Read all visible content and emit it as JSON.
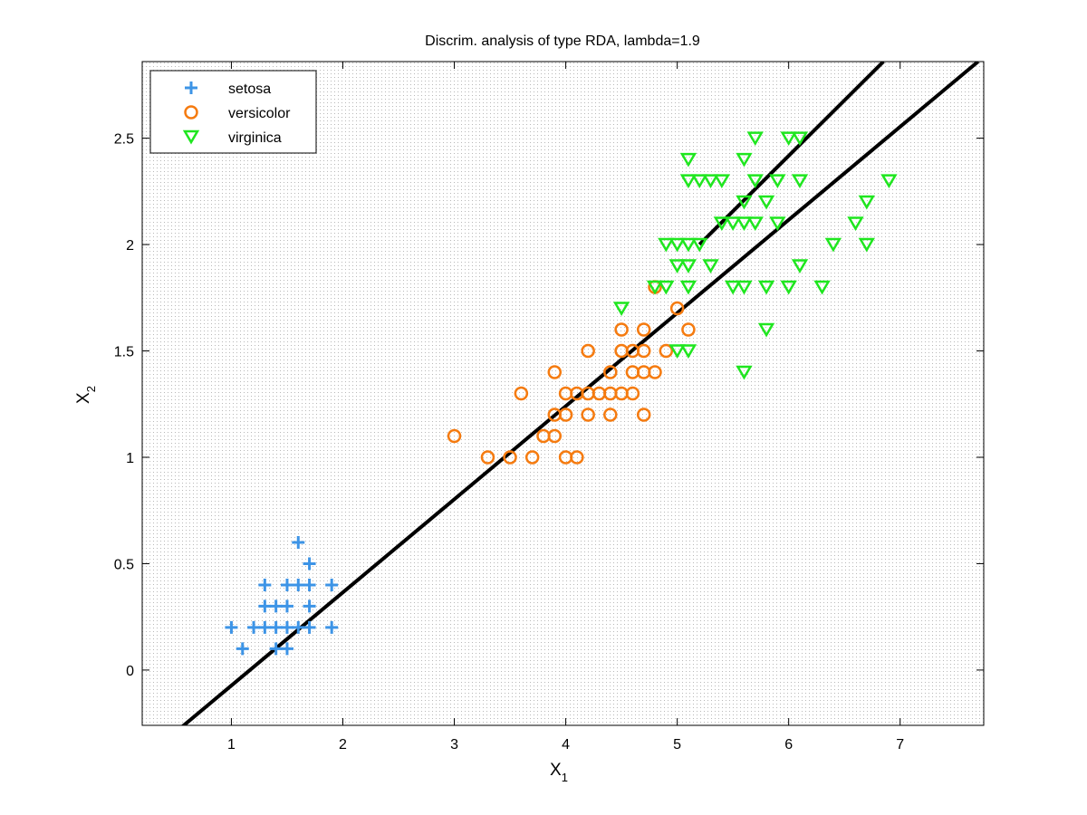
{
  "chart_data": {
    "type": "scatter",
    "title": "Discrim. analysis of type RDA, lambda=1.9",
    "xlabel": {
      "base": "X",
      "sub": "1"
    },
    "ylabel": {
      "base": "X",
      "sub": "2"
    },
    "xlim": [
      0.2,
      7.75
    ],
    "ylim": [
      -0.26,
      2.86
    ],
    "xticks": [
      1,
      2,
      3,
      4,
      5,
      6,
      7
    ],
    "yticks": [
      0,
      0.5,
      1,
      1.5,
      2,
      2.5
    ],
    "ytick_labels": [
      "0",
      "0.5",
      "1",
      "1.5",
      "2",
      "2.5"
    ],
    "background_grid": "dotted",
    "legend_position": "top-left",
    "colors": {
      "setosa": "#3d94e6",
      "versicolor": "#f57b10",
      "virginica": "#1fe61f",
      "boundary": "#000000"
    },
    "series": [
      {
        "name": "setosa",
        "marker": "plus",
        "points": [
          [
            1.0,
            0.2
          ],
          [
            1.1,
            0.1
          ],
          [
            1.2,
            0.2
          ],
          [
            1.3,
            0.2
          ],
          [
            1.3,
            0.3
          ],
          [
            1.3,
            0.4
          ],
          [
            1.4,
            0.2
          ],
          [
            1.4,
            0.3
          ],
          [
            1.4,
            0.1
          ],
          [
            1.5,
            0.2
          ],
          [
            1.5,
            0.1
          ],
          [
            1.5,
            0.3
          ],
          [
            1.5,
            0.4
          ],
          [
            1.6,
            0.2
          ],
          [
            1.6,
            0.4
          ],
          [
            1.6,
            0.6
          ],
          [
            1.7,
            0.2
          ],
          [
            1.7,
            0.3
          ],
          [
            1.7,
            0.4
          ],
          [
            1.7,
            0.5
          ],
          [
            1.9,
            0.2
          ],
          [
            1.9,
            0.4
          ]
        ]
      },
      {
        "name": "versicolor",
        "marker": "circle",
        "points": [
          [
            3.0,
            1.1
          ],
          [
            3.3,
            1.0
          ],
          [
            3.5,
            1.0
          ],
          [
            3.6,
            1.3
          ],
          [
            3.7,
            1.0
          ],
          [
            3.8,
            1.1
          ],
          [
            3.9,
            1.1
          ],
          [
            3.9,
            1.2
          ],
          [
            3.9,
            1.4
          ],
          [
            4.0,
            1.0
          ],
          [
            4.0,
            1.2
          ],
          [
            4.0,
            1.3
          ],
          [
            4.1,
            1.0
          ],
          [
            4.1,
            1.3
          ],
          [
            4.2,
            1.2
          ],
          [
            4.2,
            1.3
          ],
          [
            4.2,
            1.5
          ],
          [
            4.3,
            1.3
          ],
          [
            4.4,
            1.2
          ],
          [
            4.4,
            1.3
          ],
          [
            4.4,
            1.4
          ],
          [
            4.5,
            1.3
          ],
          [
            4.5,
            1.5
          ],
          [
            4.5,
            1.6
          ],
          [
            4.6,
            1.3
          ],
          [
            4.6,
            1.4
          ],
          [
            4.6,
            1.5
          ],
          [
            4.7,
            1.2
          ],
          [
            4.7,
            1.4
          ],
          [
            4.7,
            1.5
          ],
          [
            4.7,
            1.6
          ],
          [
            4.8,
            1.4
          ],
          [
            4.8,
            1.8
          ],
          [
            4.9,
            1.5
          ],
          [
            5.0,
            1.7
          ],
          [
            5.1,
            1.6
          ]
        ]
      },
      {
        "name": "virginica",
        "marker": "triangle-down",
        "points": [
          [
            4.5,
            1.7
          ],
          [
            4.8,
            1.8
          ],
          [
            4.9,
            1.8
          ],
          [
            4.9,
            2.0
          ],
          [
            5.0,
            1.5
          ],
          [
            5.0,
            1.9
          ],
          [
            5.0,
            2.0
          ],
          [
            5.1,
            1.5
          ],
          [
            5.1,
            1.8
          ],
          [
            5.1,
            1.9
          ],
          [
            5.1,
            2.0
          ],
          [
            5.1,
            2.3
          ],
          [
            5.1,
            2.4
          ],
          [
            5.2,
            2.0
          ],
          [
            5.2,
            2.3
          ],
          [
            5.3,
            1.9
          ],
          [
            5.3,
            2.3
          ],
          [
            5.4,
            2.1
          ],
          [
            5.4,
            2.3
          ],
          [
            5.5,
            1.8
          ],
          [
            5.5,
            2.1
          ],
          [
            5.6,
            1.4
          ],
          [
            5.6,
            1.8
          ],
          [
            5.6,
            2.1
          ],
          [
            5.6,
            2.2
          ],
          [
            5.6,
            2.4
          ],
          [
            5.7,
            2.1
          ],
          [
            5.7,
            2.3
          ],
          [
            5.7,
            2.5
          ],
          [
            5.8,
            1.6
          ],
          [
            5.8,
            1.8
          ],
          [
            5.8,
            2.2
          ],
          [
            5.9,
            2.1
          ],
          [
            5.9,
            2.3
          ],
          [
            6.0,
            1.8
          ],
          [
            6.0,
            2.5
          ],
          [
            6.1,
            1.9
          ],
          [
            6.1,
            2.3
          ],
          [
            6.1,
            2.5
          ],
          [
            6.3,
            1.8
          ],
          [
            6.4,
            2.0
          ],
          [
            6.6,
            2.1
          ],
          [
            6.7,
            2.0
          ],
          [
            6.7,
            2.2
          ],
          [
            6.9,
            2.3
          ]
        ]
      }
    ],
    "decision_boundaries": [
      {
        "name": "boundary-1",
        "points": [
          [
            0.55,
            -0.27
          ],
          [
            7.7,
            2.86
          ]
        ]
      },
      {
        "name": "boundary-2",
        "points": [
          [
            5.2,
            2.0
          ],
          [
            6.85,
            2.86
          ]
        ]
      }
    ]
  }
}
